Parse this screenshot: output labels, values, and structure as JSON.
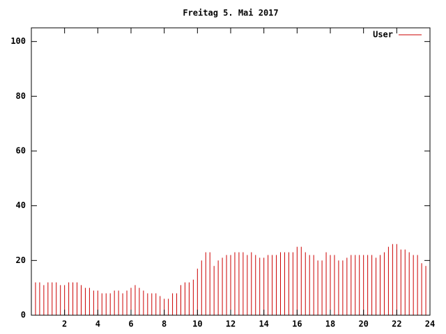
{
  "chart_data": {
    "type": "impulses",
    "title": "Freitag 5. Mai 2017",
    "x": [
      0,
      0.25,
      0.5,
      0.75,
      1,
      1.25,
      1.5,
      1.75,
      2,
      2.25,
      2.5,
      2.75,
      3,
      3.25,
      3.5,
      3.75,
      4,
      4.25,
      4.5,
      4.75,
      5,
      5.25,
      5.5,
      5.75,
      6,
      6.25,
      6.5,
      6.75,
      7,
      7.25,
      7.5,
      7.75,
      8,
      8.25,
      8.5,
      8.75,
      9,
      9.25,
      9.5,
      9.75,
      10,
      10.25,
      10.5,
      10.75,
      11,
      11.25,
      11.5,
      11.75,
      12,
      12.25,
      12.5,
      12.75,
      13,
      13.25,
      13.5,
      13.75,
      14,
      14.25,
      14.5,
      14.75,
      15,
      15.25,
      15.5,
      15.75,
      16,
      16.25,
      16.5,
      16.75,
      17,
      17.25,
      17.5,
      17.75,
      18,
      18.25,
      18.5,
      18.75,
      19,
      19.25,
      19.5,
      19.75,
      20,
      20.25,
      20.5,
      20.75,
      21,
      21.25,
      21.5,
      21.75,
      22,
      22.25,
      22.5,
      22.75,
      23,
      23.25,
      23.5,
      23.75,
      24
    ],
    "series": [
      {
        "name": "User",
        "color": "#cc0000",
        "values": [
          14,
          12,
          12,
          11,
          12,
          12,
          12,
          11,
          11,
          12,
          12,
          12,
          11,
          10,
          10,
          9,
          9,
          8,
          8,
          8,
          9,
          9,
          8,
          9,
          10,
          11,
          10,
          9,
          8,
          8,
          8,
          7,
          6,
          6,
          8,
          8,
          11,
          12,
          12,
          13,
          17,
          20,
          23,
          23,
          18,
          20,
          21,
          22,
          22,
          23,
          23,
          23,
          22,
          23,
          22,
          21,
          21,
          22,
          22,
          22,
          23,
          23,
          23,
          23,
          25,
          25,
          23,
          22,
          22,
          20,
          20,
          23,
          22,
          22,
          20,
          20,
          21,
          22,
          22,
          22,
          22,
          22,
          22,
          21,
          22,
          23,
          25,
          26,
          26,
          24,
          24,
          23,
          22,
          22,
          19,
          18,
          17
        ]
      }
    ],
    "xlim": [
      0,
      24
    ],
    "xticks": [
      2,
      4,
      6,
      8,
      10,
      12,
      14,
      16,
      18,
      20,
      22,
      24
    ],
    "ylim": [
      0,
      105
    ],
    "yticks": [
      0,
      20,
      40,
      60,
      80,
      100
    ],
    "legend": "top-right"
  }
}
